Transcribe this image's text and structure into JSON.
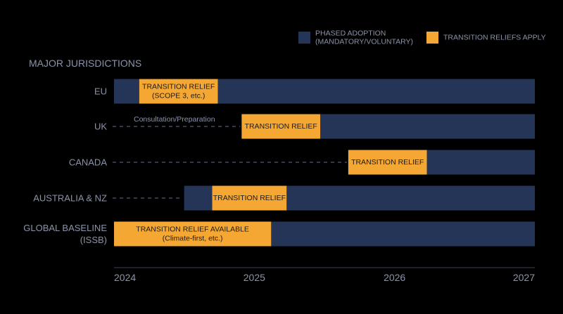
{
  "chart_data": {
    "type": "timeline",
    "section_title": "MAJOR JURISDICTIONS",
    "x_ticks": [
      "2024",
      "2025",
      "2026",
      "2027"
    ],
    "xlim": [
      2024.0,
      2027.0
    ],
    "legend": [
      {
        "label_lines": [
          "PHASED ADOPTION",
          "(MANDATORY/VOLUNTARY)"
        ],
        "color": "#243558"
      },
      {
        "label_lines": [
          "TRANSITION RELIEFS APPLY"
        ],
        "color": "#F5A733"
      }
    ],
    "rows": [
      {
        "label_lines": [
          "EU"
        ],
        "prep_label": "",
        "adoption": {
          "start": 2024.0,
          "end": 2027.0
        },
        "relief": {
          "start": 2024.18,
          "end": 2024.74,
          "label_lines": [
            "TRANSITION RELIEF",
            "(SCOPE 3, etc.)"
          ]
        }
      },
      {
        "label_lines": [
          "UK"
        ],
        "prep_label": "Consultation/Preparation",
        "adoption": {
          "start": 2024.91,
          "end": 2027.0
        },
        "relief": {
          "start": 2024.91,
          "end": 2025.47,
          "label_lines": [
            "TRANSITION RELIEF"
          ]
        }
      },
      {
        "label_lines": [
          "CANADA"
        ],
        "prep_label": "",
        "adoption": {
          "start": 2025.67,
          "end": 2027.0
        },
        "relief": {
          "start": 2025.67,
          "end": 2026.23,
          "label_lines": [
            "TRANSITION RELIEF"
          ]
        }
      },
      {
        "label_lines": [
          "AUSTRALIA & NZ"
        ],
        "prep_label": "",
        "adoption": {
          "start": 2024.5,
          "end": 2027.0
        },
        "relief": {
          "start": 2024.7,
          "end": 2025.23,
          "label_lines": [
            "TRANSITION RELIEF"
          ]
        }
      },
      {
        "label_lines": [
          "GLOBAL BASELINE",
          "(ISSB)"
        ],
        "prep_label": "",
        "adoption": {
          "start": 2024.0,
          "end": 2027.0
        },
        "relief": {
          "start": 2024.0,
          "end": 2025.12,
          "label_lines": [
            "TRANSITION RELIEF AVAILABLE",
            "(Climate-first, etc.)"
          ]
        }
      }
    ],
    "colors": {
      "background": "#000000",
      "adoption": "#243558",
      "relief": "#F5A733",
      "relief_text": "#1A1A1A",
      "label_text": "#8A93A8",
      "dashed_line": "#4F5A72",
      "axis": "#3A4256"
    }
  }
}
